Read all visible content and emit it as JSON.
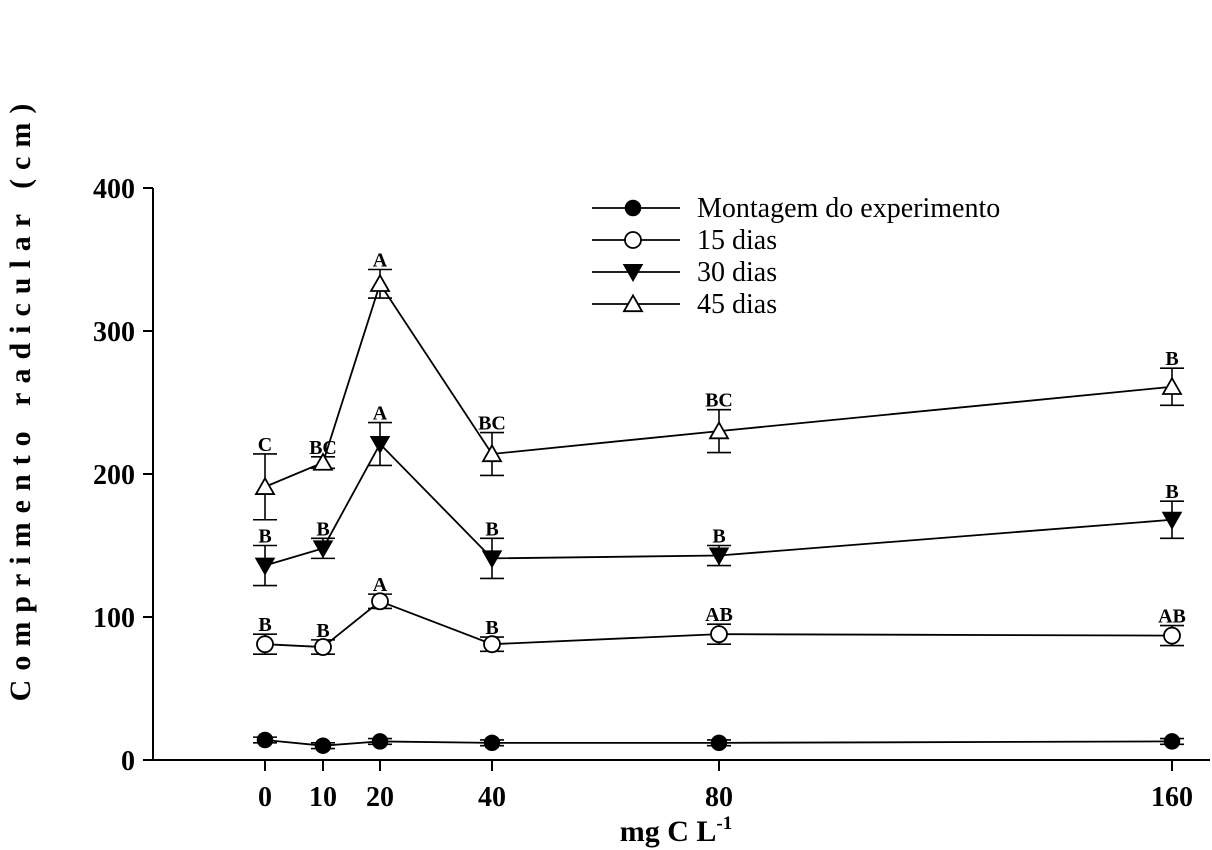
{
  "chart_data": {
    "type": "line",
    "ylabel": "Comprimento radicular (cm)",
    "xlabel_main": "mg C L",
    "xlabel_sup": "-1",
    "x": [
      0,
      10,
      20,
      40,
      80,
      160
    ],
    "x_tick_labels": [
      "0",
      "10",
      "20",
      "40",
      "80",
      "160"
    ],
    "ylim": [
      0,
      400
    ],
    "y_ticks": [
      0,
      100,
      200,
      300,
      400
    ],
    "y_tick_labels": [
      "0",
      "100",
      "200",
      "300",
      "400"
    ],
    "legend_position": "top-right",
    "grid": false,
    "series": [
      {
        "name": "Montagem do experimento",
        "marker": "circle-filled",
        "values": [
          14,
          10,
          13,
          12,
          12,
          13
        ],
        "errors": [
          2,
          2,
          2,
          2,
          2,
          2
        ],
        "labels": [
          "",
          "",
          "",
          "",
          "",
          ""
        ]
      },
      {
        "name": "15 dias",
        "marker": "circle-open",
        "values": [
          81,
          79,
          111,
          81,
          88,
          87
        ],
        "errors": [
          7,
          5,
          5,
          5,
          7,
          7
        ],
        "labels": [
          "B",
          "B",
          "A",
          "B",
          "AB",
          "AB"
        ]
      },
      {
        "name": "30 dias",
        "marker": "triangle-down-filled",
        "values": [
          136,
          148,
          221,
          141,
          143,
          168
        ],
        "errors": [
          14,
          7,
          15,
          14,
          7,
          13
        ],
        "labels": [
          "B",
          "B",
          "A",
          "B",
          "B",
          "B"
        ]
      },
      {
        "name": "45 dias",
        "marker": "triangle-up-open",
        "values": [
          191,
          208,
          333,
          214,
          230,
          261
        ],
        "errors": [
          23,
          4,
          10,
          15,
          15,
          13
        ],
        "labels": [
          "C",
          "BC",
          "A",
          "BC",
          "BC",
          "B"
        ]
      }
    ]
  }
}
